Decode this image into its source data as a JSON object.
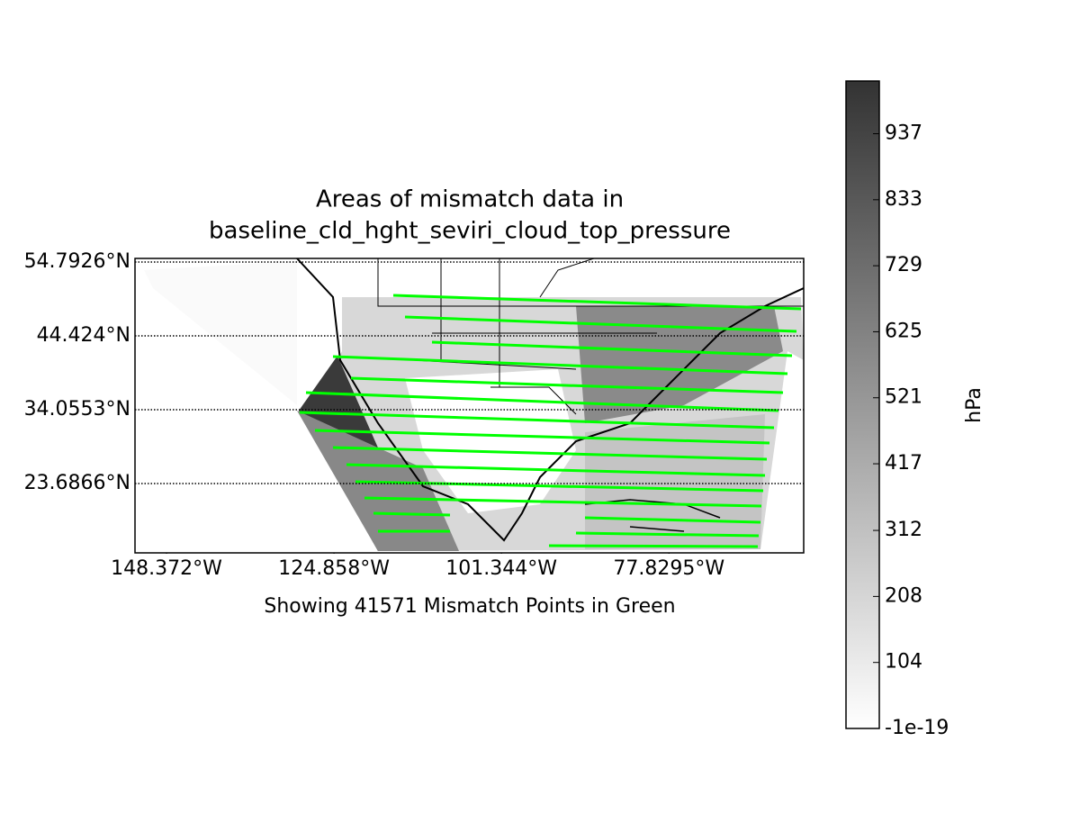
{
  "chart_data": {
    "type": "map",
    "title": "Areas of mismatch data in\nbaseline_cld_hght_seviri_cloud_top_pressure",
    "xlabel": "Showing 41571 Mismatch Points in Green",
    "xlim": [
      -152.8,
      -58.9
    ],
    "ylim": [
      13.95,
      55.3
    ],
    "xticks": [
      {
        "value": -148.372,
        "label": "148.372°W"
      },
      {
        "value": -124.858,
        "label": "124.858°W"
      },
      {
        "value": -101.344,
        "label": "101.344°W"
      },
      {
        "value": -77.8295,
        "label": "77.8295°W"
      }
    ],
    "yticks": [
      {
        "value": 54.7926,
        "label": "54.7926°N"
      },
      {
        "value": 44.424,
        "label": "44.424°N"
      },
      {
        "value": 34.0553,
        "label": "34.0553°N"
      },
      {
        "value": 23.6866,
        "label": "23.6866°N"
      }
    ],
    "grid": true,
    "colorbar": {
      "label": "hPa",
      "lim": [
        -1e-19,
        1020
      ],
      "ticks": [
        -1e-19,
        104,
        208,
        312,
        417,
        521,
        625,
        729,
        833,
        937
      ]
    }
  }
}
